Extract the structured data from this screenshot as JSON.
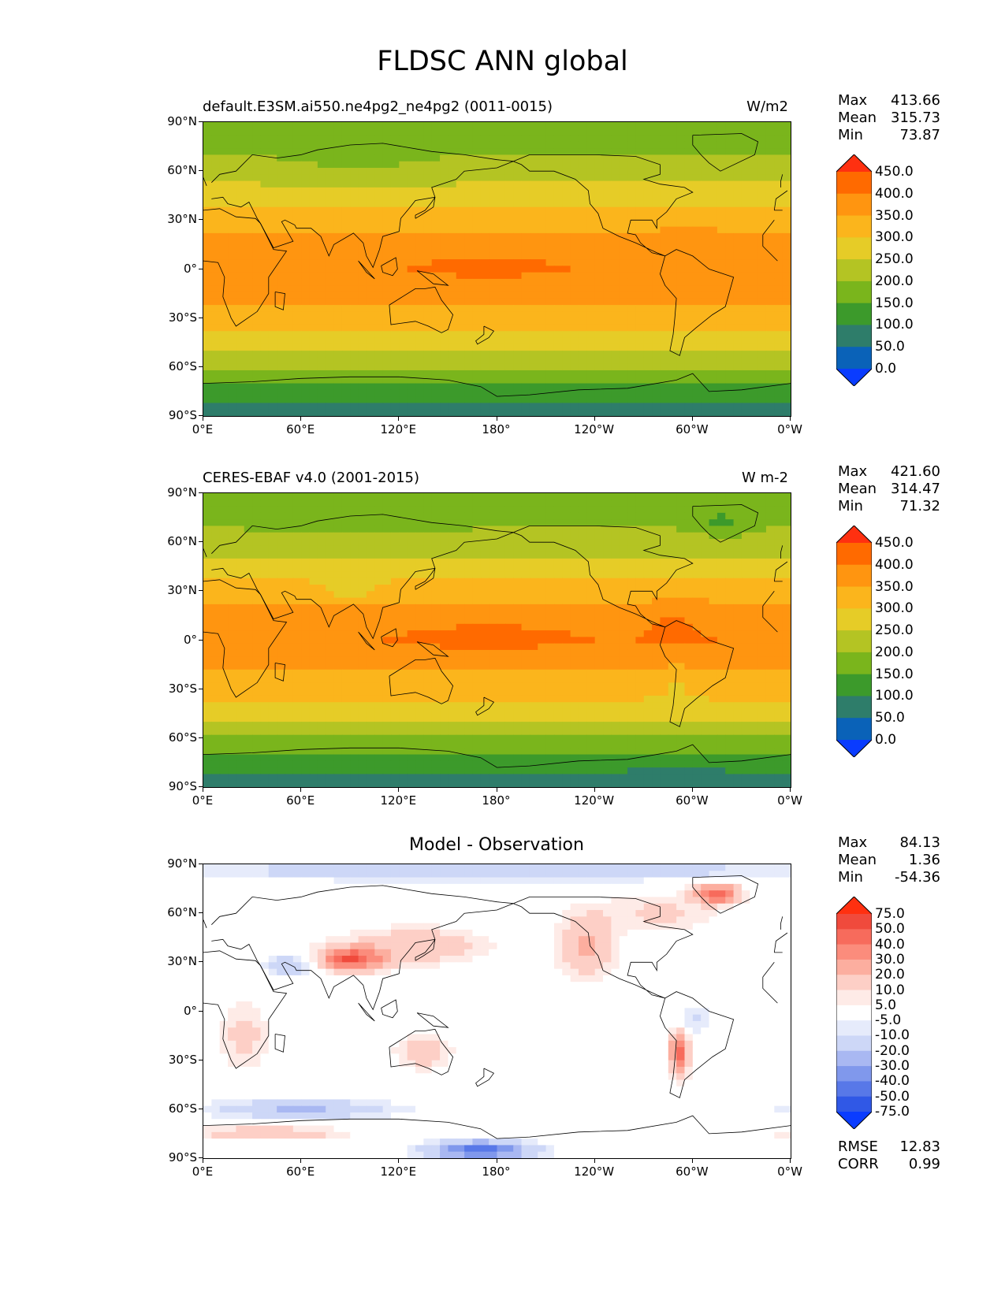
{
  "title": "FLDSC ANN global",
  "axes": {
    "y_ticks": [
      "90°N",
      "60°N",
      "30°N",
      "0°",
      "30°S",
      "60°S",
      "90°S"
    ],
    "x_ticks": [
      "0°E",
      "60°E",
      "120°E",
      "180°",
      "120°W",
      "60°W",
      "0°W"
    ]
  },
  "panels": [
    {
      "id": "model",
      "left_title": "default.E3SM.ai550.ne4pg2_ne4pg2 (0011-0015)",
      "right_title": "W/m2",
      "center_title": "",
      "stats": {
        "max_label": "Max",
        "max": "413.66",
        "mean_label": "Mean",
        "mean": "315.73",
        "min_label": "Min",
        "min": "73.87"
      },
      "colorbar": {
        "labels": [
          "450.0",
          "400.0",
          "350.0",
          "300.0",
          "250.0",
          "200.0",
          "150.0",
          "100.0",
          "50.0",
          "0.0"
        ],
        "colors": [
          "#ff3010",
          "#ff6a00",
          "#ff9510",
          "#fbb51c",
          "#e6cc27",
          "#b4c423",
          "#7ab51c",
          "#3c9a2b",
          "#2e7d6a",
          "#0a62b8",
          "#0a3cff"
        ]
      }
    },
    {
      "id": "obs",
      "left_title": "CERES-EBAF v4.0 (2001-2015)",
      "right_title": "W m-2",
      "center_title": "",
      "stats": {
        "max_label": "Max",
        "max": "421.60",
        "mean_label": "Mean",
        "mean": "314.47",
        "min_label": "Min",
        "min": "71.32"
      },
      "colorbar": {
        "labels": [
          "450.0",
          "400.0",
          "350.0",
          "300.0",
          "250.0",
          "200.0",
          "150.0",
          "100.0",
          "50.0",
          "0.0"
        ],
        "colors": [
          "#ff3010",
          "#ff6a00",
          "#ff9510",
          "#fbb51c",
          "#e6cc27",
          "#b4c423",
          "#7ab51c",
          "#3c9a2b",
          "#2e7d6a",
          "#0a62b8",
          "#0a3cff"
        ]
      }
    },
    {
      "id": "diff",
      "left_title": "",
      "right_title": "",
      "center_title": "Model - Observation",
      "stats": {
        "max_label": "Max",
        "max": "84.13",
        "mean_label": "Mean",
        "mean": "1.36",
        "min_label": "Min",
        "min": "-54.36"
      },
      "colorbar": {
        "labels": [
          "75.0",
          "50.0",
          "40.0",
          "30.0",
          "20.0",
          "10.0",
          "5.0",
          "-5.0",
          "-10.0",
          "-20.0",
          "-30.0",
          "-40.0",
          "-50.0",
          "-75.0"
        ],
        "colors": [
          "#ff3010",
          "#f04a3c",
          "#f76b5c",
          "#fb8c7c",
          "#fcae9f",
          "#fdcfc6",
          "#feebe7",
          "#ffffff",
          "#e6ebfb",
          "#cdd7f7",
          "#a9b8f2",
          "#8098ec",
          "#5878e8",
          "#3058e6",
          "#0a3cff"
        ]
      },
      "metrics": {
        "rmse_label": "RMSE",
        "rmse": "12.83",
        "corr_label": "CORR",
        "corr": "0.99"
      }
    }
  ],
  "chart_data": [
    {
      "type": "heatmap",
      "title": "default.E3SM.ai550.ne4pg2_ne4pg2 (0011-0015)",
      "units": "W/m2",
      "xlim": [
        0,
        360
      ],
      "ylim": [
        -90,
        90
      ],
      "color_levels": [
        0,
        50,
        100,
        150,
        200,
        250,
        300,
        350,
        400,
        450
      ],
      "zonal_profile": [
        {
          "lat": 85,
          "value": 175
        },
        {
          "lat": 70,
          "value": 200
        },
        {
          "lat": 60,
          "value": 230
        },
        {
          "lat": 45,
          "value": 275
        },
        {
          "lat": 30,
          "value": 330
        },
        {
          "lat": 15,
          "value": 365
        },
        {
          "lat": 0,
          "value": 385
        },
        {
          "lat": -15,
          "value": 365
        },
        {
          "lat": -30,
          "value": 325
        },
        {
          "lat": -45,
          "value": 270
        },
        {
          "lat": -55,
          "value": 225
        },
        {
          "lat": -65,
          "value": 175
        },
        {
          "lat": -75,
          "value": 120
        },
        {
          "lat": -85,
          "value": 90
        }
      ],
      "stats": {
        "max": 413.66,
        "mean": 315.73,
        "min": 73.87
      }
    },
    {
      "type": "heatmap",
      "title": "CERES-EBAF v4.0 (2001-2015)",
      "units": "W m-2",
      "xlim": [
        0,
        360
      ],
      "ylim": [
        -90,
        90
      ],
      "color_levels": [
        0,
        50,
        100,
        150,
        200,
        250,
        300,
        350,
        400,
        450
      ],
      "zonal_profile": [
        {
          "lat": 85,
          "value": 175
        },
        {
          "lat": 70,
          "value": 195
        },
        {
          "lat": 60,
          "value": 225
        },
        {
          "lat": 45,
          "value": 270
        },
        {
          "lat": 30,
          "value": 325
        },
        {
          "lat": 15,
          "value": 370
        },
        {
          "lat": 0,
          "value": 390
        },
        {
          "lat": -15,
          "value": 360
        },
        {
          "lat": -30,
          "value": 320
        },
        {
          "lat": -45,
          "value": 270
        },
        {
          "lat": -55,
          "value": 225
        },
        {
          "lat": -65,
          "value": 170
        },
        {
          "lat": -75,
          "value": 115
        },
        {
          "lat": -85,
          "value": 85
        }
      ],
      "stats": {
        "max": 421.6,
        "mean": 314.47,
        "min": 71.32
      }
    },
    {
      "type": "heatmap",
      "title": "Model - Observation",
      "xlim": [
        0,
        360
      ],
      "ylim": [
        -90,
        90
      ],
      "color_levels": [
        -75,
        -50,
        -40,
        -30,
        -20,
        -10,
        -5,
        5,
        10,
        20,
        30,
        40,
        50,
        75
      ],
      "notable_regions": [
        {
          "region": "Tibetan Plateau",
          "lon": 90,
          "lat": 32,
          "value": 45
        },
        {
          "region": "Greenland",
          "lon": 315,
          "lat": 72,
          "value": 45
        },
        {
          "region": "Andes",
          "lon": 292,
          "lat": -25,
          "value": 40
        },
        {
          "region": "Arctic Ocean",
          "lon": 180,
          "lat": 85,
          "value": -25
        },
        {
          "region": "Southern Ocean",
          "lon": 180,
          "lat": -80,
          "value": -45
        }
      ],
      "stats": {
        "max": 84.13,
        "mean": 1.36,
        "min": -54.36
      },
      "rmse": 12.83,
      "corr": 0.99
    }
  ]
}
